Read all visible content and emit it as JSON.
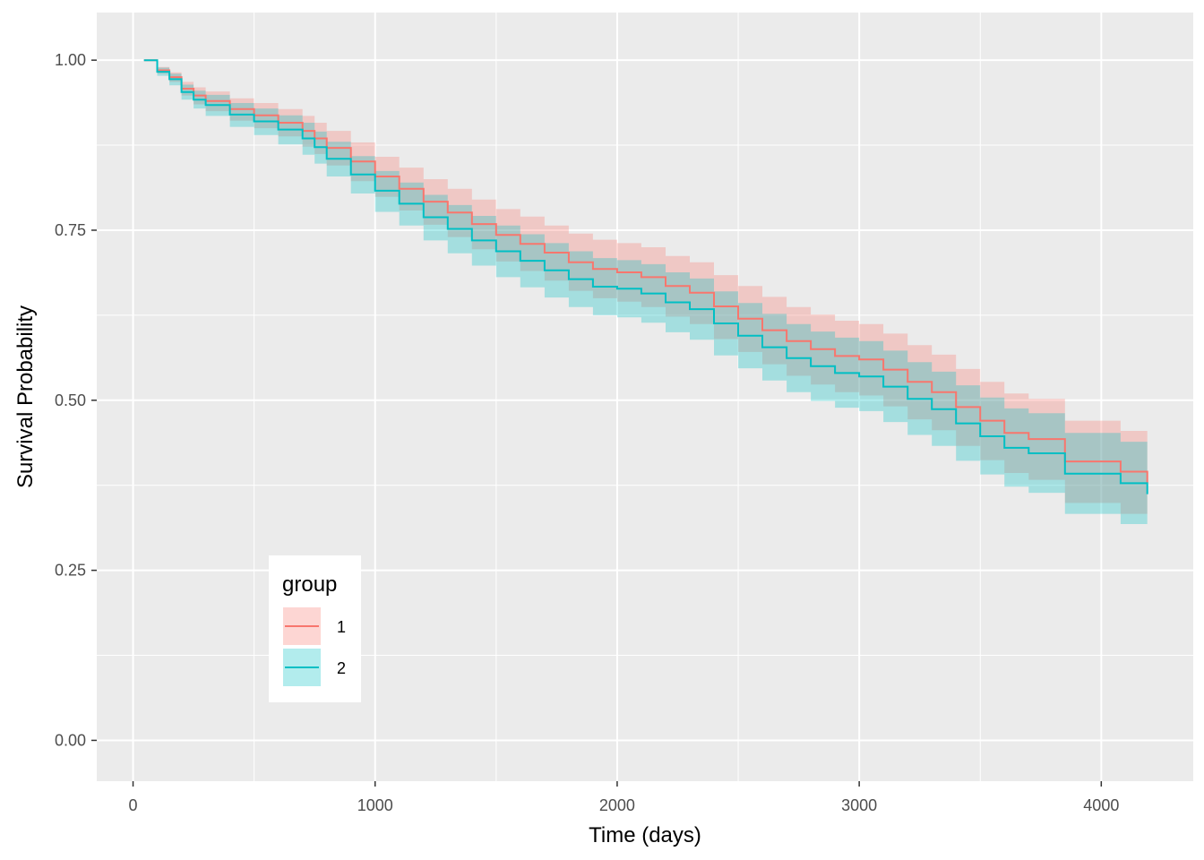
{
  "chart_data": {
    "type": "line",
    "title": "",
    "xlabel": "Time (days)",
    "ylabel": "Survival Probability",
    "xlim": [
      -150,
      4380
    ],
    "ylim": [
      -0.06,
      1.07
    ],
    "x_ticks": [
      0,
      1000,
      2000,
      3000,
      4000
    ],
    "x_tick_labels": [
      "0",
      "1000",
      "2000",
      "3000",
      "4000"
    ],
    "y_ticks": [
      0,
      0.25,
      0.5,
      0.75,
      1.0
    ],
    "y_tick_labels": [
      "0.00",
      "0.25",
      "0.50",
      "0.75",
      "1.00"
    ],
    "grid": true,
    "background_color": "#ebebeb",
    "legend": {
      "title": "group",
      "placement": "bottom-left-inside",
      "entries": [
        "1",
        "2"
      ]
    },
    "series": [
      {
        "name": "1",
        "color": "#F8766D",
        "fill": "#F8766D",
        "step": true,
        "x": [
          45,
          100,
          150,
          200,
          250,
          300,
          400,
          500,
          600,
          700,
          750,
          800,
          900,
          1000,
          1100,
          1200,
          1300,
          1400,
          1500,
          1600,
          1700,
          1800,
          1900,
          2000,
          2100,
          2200,
          2300,
          2400,
          2500,
          2600,
          2700,
          2800,
          2900,
          3000,
          3100,
          3200,
          3300,
          3400,
          3500,
          3600,
          3700,
          3850,
          4080,
          4190
        ],
        "y": [
          1.0,
          0.985,
          0.975,
          0.958,
          0.948,
          0.94,
          0.928,
          0.919,
          0.908,
          0.896,
          0.885,
          0.871,
          0.851,
          0.829,
          0.811,
          0.792,
          0.776,
          0.759,
          0.743,
          0.73,
          0.717,
          0.703,
          0.693,
          0.688,
          0.681,
          0.668,
          0.658,
          0.638,
          0.62,
          0.603,
          0.587,
          0.575,
          0.565,
          0.56,
          0.545,
          0.527,
          0.512,
          0.49,
          0.47,
          0.452,
          0.443,
          0.41,
          0.395,
          0.378
        ],
        "lower": [
          1.0,
          0.98,
          0.968,
          0.948,
          0.935,
          0.925,
          0.911,
          0.9,
          0.888,
          0.873,
          0.862,
          0.845,
          0.822,
          0.799,
          0.779,
          0.758,
          0.74,
          0.722,
          0.704,
          0.69,
          0.676,
          0.661,
          0.65,
          0.645,
          0.637,
          0.623,
          0.612,
          0.59,
          0.571,
          0.553,
          0.536,
          0.523,
          0.512,
          0.507,
          0.491,
          0.472,
          0.456,
          0.433,
          0.412,
          0.393,
          0.383,
          0.349,
          0.333,
          0.315
        ],
        "upper": [
          1.0,
          0.99,
          0.982,
          0.968,
          0.96,
          0.954,
          0.944,
          0.937,
          0.928,
          0.918,
          0.908,
          0.896,
          0.879,
          0.858,
          0.842,
          0.825,
          0.811,
          0.795,
          0.781,
          0.77,
          0.757,
          0.745,
          0.736,
          0.731,
          0.725,
          0.712,
          0.703,
          0.684,
          0.668,
          0.652,
          0.637,
          0.626,
          0.617,
          0.612,
          0.598,
          0.581,
          0.567,
          0.546,
          0.527,
          0.51,
          0.502,
          0.47,
          0.455,
          0.438
        ]
      },
      {
        "name": "2",
        "color": "#00BFC4",
        "fill": "#00BFC4",
        "step": true,
        "x": [
          45,
          100,
          150,
          200,
          250,
          300,
          400,
          500,
          600,
          700,
          750,
          800,
          900,
          1000,
          1100,
          1200,
          1300,
          1400,
          1500,
          1600,
          1700,
          1800,
          1900,
          2000,
          2100,
          2200,
          2300,
          2400,
          2500,
          2600,
          2700,
          2800,
          2900,
          3000,
          3100,
          3200,
          3300,
          3400,
          3500,
          3600,
          3700,
          3850,
          4080,
          4190
        ],
        "y": [
          1.0,
          0.983,
          0.972,
          0.953,
          0.942,
          0.934,
          0.92,
          0.91,
          0.898,
          0.885,
          0.872,
          0.855,
          0.832,
          0.808,
          0.789,
          0.769,
          0.752,
          0.735,
          0.719,
          0.705,
          0.691,
          0.678,
          0.667,
          0.664,
          0.657,
          0.644,
          0.634,
          0.613,
          0.595,
          0.578,
          0.562,
          0.55,
          0.54,
          0.535,
          0.52,
          0.502,
          0.487,
          0.466,
          0.447,
          0.43,
          0.422,
          0.392,
          0.378,
          0.362
        ],
        "lower": [
          1.0,
          0.977,
          0.963,
          0.942,
          0.929,
          0.918,
          0.902,
          0.89,
          0.876,
          0.861,
          0.848,
          0.829,
          0.804,
          0.777,
          0.757,
          0.735,
          0.716,
          0.698,
          0.681,
          0.666,
          0.651,
          0.637,
          0.625,
          0.622,
          0.614,
          0.6,
          0.589,
          0.566,
          0.547,
          0.529,
          0.512,
          0.499,
          0.489,
          0.484,
          0.468,
          0.449,
          0.433,
          0.411,
          0.391,
          0.373,
          0.364,
          0.333,
          0.318,
          0.301
        ],
        "upper": [
          1.0,
          0.989,
          0.98,
          0.964,
          0.955,
          0.949,
          0.937,
          0.929,
          0.919,
          0.908,
          0.895,
          0.88,
          0.859,
          0.837,
          0.82,
          0.802,
          0.787,
          0.771,
          0.757,
          0.744,
          0.731,
          0.719,
          0.709,
          0.706,
          0.7,
          0.688,
          0.679,
          0.66,
          0.643,
          0.627,
          0.612,
          0.601,
          0.592,
          0.587,
          0.573,
          0.556,
          0.542,
          0.522,
          0.504,
          0.488,
          0.481,
          0.452,
          0.439,
          0.424
        ]
      }
    ]
  }
}
